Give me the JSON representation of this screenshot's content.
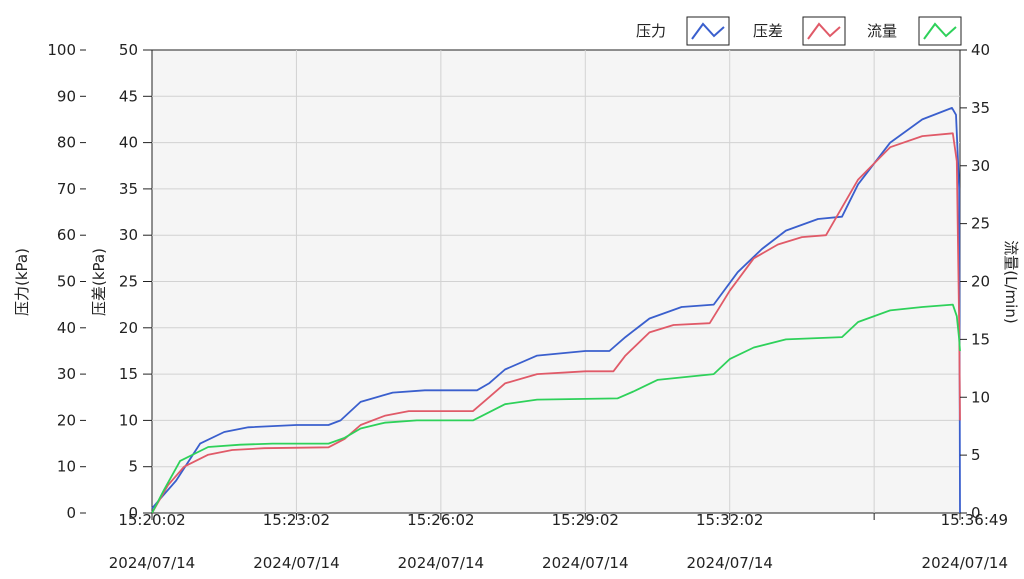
{
  "chart_data": {
    "type": "line",
    "title": "",
    "grid": true,
    "legend_position": "top-right",
    "x": {
      "ticks": [
        {
          "time": "15:20:02",
          "date": "2024/07/14",
          "t": 0
        },
        {
          "time": "15:23:02",
          "date": "2024/07/14",
          "t": 180
        },
        {
          "time": "15:26:02",
          "date": "2024/07/14",
          "t": 360
        },
        {
          "time": "15:29:02",
          "date": "2024/07/14",
          "t": 540
        },
        {
          "time": "15:32:02",
          "date": "2024/07/14",
          "t": 720
        },
        {
          "time": "",
          "date": "",
          "t": 900
        },
        {
          "time": "15:36:49",
          "date": "2024/07/14",
          "t": 1007
        }
      ],
      "range": [
        0,
        1007
      ]
    },
    "axes": {
      "left_outer": {
        "label": "压力(kPa)",
        "range": [
          0,
          100
        ],
        "ticks": [
          "100",
          "90",
          "80",
          "70",
          "60",
          "50",
          "40",
          "30",
          "20",
          "10",
          "0"
        ]
      },
      "left_inner": {
        "label": "压差(kPa)",
        "range": [
          0,
          50
        ],
        "ticks": [
          "50",
          "45",
          "40",
          "35",
          "30",
          "25",
          "20",
          "15",
          "10",
          "5",
          "0"
        ]
      },
      "right": {
        "label": "流量(L/min)",
        "range": [
          0,
          40
        ],
        "ticks": [
          "40",
          "35",
          "30",
          "25",
          "20",
          "15",
          "10",
          "5",
          "0"
        ]
      }
    },
    "series": [
      {
        "name": "压力",
        "axis": "left_outer",
        "color": "#3a5fcd",
        "points": [
          [
            0,
            1
          ],
          [
            10,
            3
          ],
          [
            30,
            7
          ],
          [
            60,
            15
          ],
          [
            90,
            17.5
          ],
          [
            120,
            18.5
          ],
          [
            180,
            19
          ],
          [
            220,
            19
          ],
          [
            235,
            20
          ],
          [
            260,
            24
          ],
          [
            300,
            26
          ],
          [
            340,
            26.5
          ],
          [
            405,
            26.5
          ],
          [
            420,
            28
          ],
          [
            440,
            31
          ],
          [
            480,
            34
          ],
          [
            540,
            35
          ],
          [
            570,
            35
          ],
          [
            590,
            38
          ],
          [
            620,
            42
          ],
          [
            660,
            44.5
          ],
          [
            700,
            45
          ],
          [
            730,
            52
          ],
          [
            760,
            57
          ],
          [
            790,
            61
          ],
          [
            830,
            63.5
          ],
          [
            860,
            64
          ],
          [
            880,
            71
          ],
          [
            920,
            80
          ],
          [
            960,
            85
          ],
          [
            997,
            87.5
          ],
          [
            1002,
            86
          ],
          [
            1006,
            70
          ],
          [
            1007,
            0
          ]
        ]
      },
      {
        "name": "压差",
        "axis": "left_inner",
        "color": "#e05a68",
        "points": [
          [
            0,
            0
          ],
          [
            20,
            3
          ],
          [
            40,
            5
          ],
          [
            70,
            6.3
          ],
          [
            100,
            6.8
          ],
          [
            140,
            7
          ],
          [
            220,
            7.1
          ],
          [
            240,
            8
          ],
          [
            260,
            9.5
          ],
          [
            290,
            10.5
          ],
          [
            320,
            11
          ],
          [
            400,
            11
          ],
          [
            420,
            12.5
          ],
          [
            440,
            14
          ],
          [
            480,
            15
          ],
          [
            540,
            15.3
          ],
          [
            575,
            15.3
          ],
          [
            590,
            17
          ],
          [
            620,
            19.5
          ],
          [
            650,
            20.3
          ],
          [
            695,
            20.5
          ],
          [
            720,
            24
          ],
          [
            750,
            27.5
          ],
          [
            780,
            29
          ],
          [
            810,
            29.8
          ],
          [
            840,
            30
          ],
          [
            860,
            33
          ],
          [
            880,
            36
          ],
          [
            920,
            39.5
          ],
          [
            960,
            40.7
          ],
          [
            998,
            41
          ],
          [
            1003,
            38
          ],
          [
            1006,
            20
          ],
          [
            1007,
            10
          ]
        ]
      },
      {
        "name": "流量",
        "axis": "right",
        "color": "#2ed15a",
        "points": [
          [
            0,
            0
          ],
          [
            15,
            2
          ],
          [
            35,
            4.5
          ],
          [
            70,
            5.7
          ],
          [
            110,
            5.9
          ],
          [
            150,
            6
          ],
          [
            220,
            6
          ],
          [
            240,
            6.5
          ],
          [
            260,
            7.3
          ],
          [
            290,
            7.8
          ],
          [
            330,
            8
          ],
          [
            400,
            8
          ],
          [
            420,
            8.7
          ],
          [
            440,
            9.4
          ],
          [
            480,
            9.8
          ],
          [
            580,
            9.9
          ],
          [
            600,
            10.5
          ],
          [
            630,
            11.5
          ],
          [
            700,
            12
          ],
          [
            720,
            13.3
          ],
          [
            750,
            14.3
          ],
          [
            790,
            15
          ],
          [
            860,
            15.2
          ],
          [
            880,
            16.5
          ],
          [
            920,
            17.5
          ],
          [
            960,
            17.8
          ],
          [
            998,
            18
          ],
          [
            1003,
            17
          ],
          [
            1006,
            15
          ],
          [
            1007,
            14
          ]
        ]
      }
    ]
  }
}
